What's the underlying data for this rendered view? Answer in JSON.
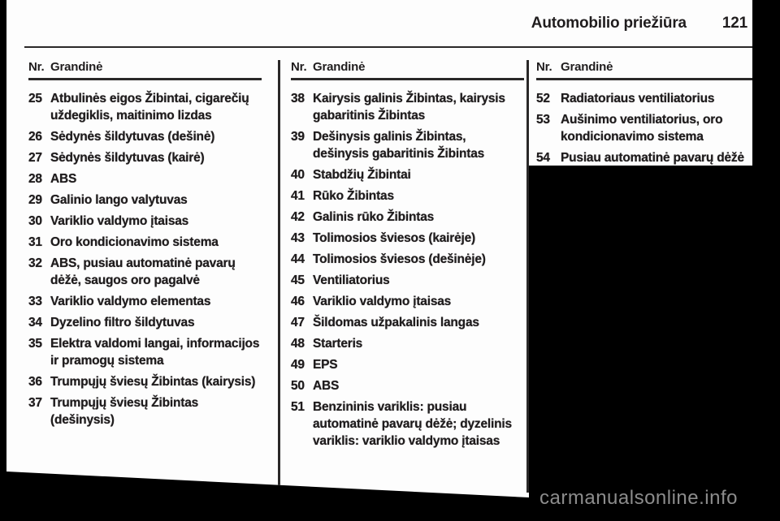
{
  "page": {
    "header_title": "Automobilio priežiūra",
    "page_number": "121"
  },
  "columns": [
    {
      "nr_label": "Nr.",
      "circuit_label": "Grandinė",
      "items": [
        {
          "nr": "25",
          "text": "Atbulinės eigos Žibintai, cigarečių uždegiklis, maitinimo lizdas"
        },
        {
          "nr": "26",
          "text": "Sėdynės šildytuvas (dešinė)"
        },
        {
          "nr": "27",
          "text": "Sėdynės šildytuvas (kairė)"
        },
        {
          "nr": "28",
          "text": "ABS"
        },
        {
          "nr": "29",
          "text": "Galinio lango valytuvas"
        },
        {
          "nr": "30",
          "text": "Variklio valdymo įtaisas"
        },
        {
          "nr": "31",
          "text": "Oro kondicionavimo sistema"
        },
        {
          "nr": "32",
          "text": "ABS, pusiau automatinė pavarų dėžė, saugos oro pagalvė"
        },
        {
          "nr": "33",
          "text": "Variklio valdymo elementas"
        },
        {
          "nr": "34",
          "text": "Dyzelino filtro šildytuvas"
        },
        {
          "nr": "35",
          "text": "Elektra valdomi langai, informacijos ir pramogų sistema"
        },
        {
          "nr": "36",
          "text": "Trumpųjų šviesų Žibintas (kairysis)"
        },
        {
          "nr": "37",
          "text": "Trumpųjų šviesų Žibintas (dešinysis)"
        }
      ]
    },
    {
      "nr_label": "Nr.",
      "circuit_label": "Grandinė",
      "items": [
        {
          "nr": "38",
          "text": "Kairysis galinis Žibintas, kairysis gabaritinis Žibintas"
        },
        {
          "nr": "39",
          "text": "Dešinysis galinis Žibintas, dešinysis gabaritinis Žibintas"
        },
        {
          "nr": "40",
          "text": "Stabdžių Žibintai"
        },
        {
          "nr": "41",
          "text": "Rūko Žibintas"
        },
        {
          "nr": "42",
          "text": "Galinis rūko Žibintas"
        },
        {
          "nr": "43",
          "text": "Tolimosios šviesos (kairėje)"
        },
        {
          "nr": "44",
          "text": "Tolimosios šviesos (dešinėje)"
        },
        {
          "nr": "45",
          "text": "Ventiliatorius"
        },
        {
          "nr": "46",
          "text": "Variklio valdymo įtaisas"
        },
        {
          "nr": "47",
          "text": "Šildomas užpakalinis langas"
        },
        {
          "nr": "48",
          "text": "Starteris"
        },
        {
          "nr": "49",
          "text": "EPS"
        },
        {
          "nr": "50",
          "text": "ABS"
        },
        {
          "nr": "51",
          "text": "Benzininis variklis: pusiau automatinė pavarų dėžė; dyzelinis variklis: variklio valdymo įtaisas"
        }
      ]
    },
    {
      "nr_label": "Nr.",
      "circuit_label": "Grandinė",
      "items": [
        {
          "nr": "52",
          "text": "Radiatoriaus ventiliatorius"
        },
        {
          "nr": "53",
          "text": "Aušinimo ventiliatorius, oro kondicionavimo sistema"
        },
        {
          "nr": "54",
          "text": "Pusiau automatinė pavarų dėžė"
        }
      ]
    }
  ],
  "watermark": "carmanualsonline.info",
  "colors": {
    "ink": "#201d1e",
    "pagebg": "#fdfdfd",
    "surround": "#000000",
    "rule": "#2a2828",
    "wm": "#8c8c8c"
  }
}
